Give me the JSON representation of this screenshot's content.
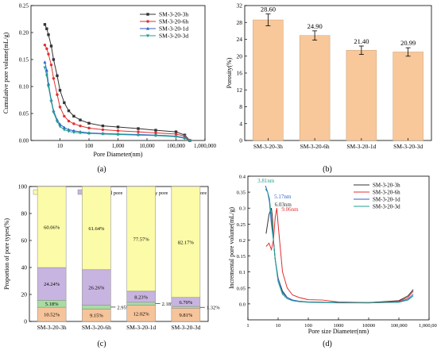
{
  "panels": {
    "a": {
      "caption": "(a)",
      "chart_data": {
        "type": "line",
        "title": "",
        "xlabel": "Pore Diameter(nm)",
        "ylabel": "Cumulative pore volume(mL/g)",
        "x_scale": "log",
        "xlim": [
          1,
          1000000
        ],
        "ylim": [
          0,
          0.25
        ],
        "x_ticks": [
          {
            "v": 10,
            "label": "10"
          },
          {
            "v": 100,
            "label": "100"
          },
          {
            "v": 1000,
            "label": "1,000"
          },
          {
            "v": 10000,
            "label": "10,000"
          },
          {
            "v": 100000,
            "label": "100,000"
          },
          {
            "v": 1000000,
            "label": "1,000,000"
          }
        ],
        "y_ticks": [
          {
            "v": 0,
            "label": "0.00"
          },
          {
            "v": 0.05,
            "label": "0.05"
          },
          {
            "v": 0.1,
            "label": "0.10"
          },
          {
            "v": 0.15,
            "label": "0.15"
          },
          {
            "v": 0.2,
            "label": "0.20"
          },
          {
            "v": 0.25,
            "label": "0.25"
          }
        ],
        "legend": "top-right",
        "series": [
          {
            "name": "SM-3-20-3h",
            "color": "#333333",
            "marker": "square",
            "x": [
              3,
              3.5,
              4,
              5,
              6,
              8,
              10,
              14,
              20,
              30,
              50,
              100,
              300,
              1000,
              5000,
              20000,
              100000,
              200000,
              300000
            ],
            "y": [
              0.215,
              0.207,
              0.196,
              0.175,
              0.15,
              0.12,
              0.093,
              0.07,
              0.055,
              0.045,
              0.038,
              0.032,
              0.027,
              0.025,
              0.022,
              0.019,
              0.016,
              0.01,
              0.0
            ]
          },
          {
            "name": "SM-3-20-6h",
            "color": "#e03030",
            "marker": "circle",
            "x": [
              3,
              3.5,
              4,
              5,
              6,
              8,
              10,
              14,
              20,
              30,
              50,
              100,
              300,
              1000,
              5000,
              20000,
              100000,
              200000,
              300000
            ],
            "y": [
              0.177,
              0.17,
              0.16,
              0.14,
              0.115,
              0.085,
              0.062,
              0.045,
              0.036,
              0.031,
              0.027,
              0.023,
              0.02,
              0.018,
              0.016,
              0.014,
              0.012,
              0.008,
              0.0
            ]
          },
          {
            "name": "SM-3-20-1d",
            "color": "#2f5fc8",
            "marker": "triangle-up",
            "x": [
              3,
              3.5,
              4,
              5,
              6,
              8,
              10,
              14,
              20,
              30,
              50,
              100,
              300,
              1000,
              5000,
              20000,
              100000,
              200000,
              300000
            ],
            "y": [
              0.145,
              0.13,
              0.105,
              0.075,
              0.055,
              0.038,
              0.03,
              0.024,
              0.02,
              0.018,
              0.016,
              0.014,
              0.013,
              0.012,
              0.011,
              0.01,
              0.008,
              0.005,
              0.0
            ]
          },
          {
            "name": "SM-3-20-3d",
            "color": "#20a090",
            "marker": "triangle-down",
            "x": [
              3,
              3.5,
              4,
              5,
              6,
              8,
              10,
              14,
              20,
              30,
              50,
              100,
              300,
              1000,
              5000,
              20000,
              100000,
              200000,
              300000
            ],
            "y": [
              0.135,
              0.12,
              0.1,
              0.072,
              0.052,
              0.035,
              0.026,
              0.02,
              0.017,
              0.015,
              0.014,
              0.013,
              0.012,
              0.011,
              0.01,
              0.009,
              0.007,
              0.004,
              0.0
            ]
          }
        ]
      }
    },
    "b": {
      "caption": "(b)",
      "chart_data": {
        "type": "bar",
        "title": "",
        "xlabel": "",
        "ylabel": "Porosity(%)",
        "ylim": [
          0,
          32
        ],
        "y_ticks": [
          {
            "v": 0,
            "label": "0"
          },
          {
            "v": 4,
            "label": "4"
          },
          {
            "v": 8,
            "label": "8"
          },
          {
            "v": 12,
            "label": "12"
          },
          {
            "v": 16,
            "label": "16"
          },
          {
            "v": 20,
            "label": "20"
          },
          {
            "v": 24,
            "label": "24"
          },
          {
            "v": 28,
            "label": "28"
          },
          {
            "v": 32,
            "label": "32"
          }
        ],
        "categories": [
          "SM-3-20-3h",
          "SM-3-20-6h",
          "SM-3-20-1d",
          "SM-3-20-3d"
        ],
        "values": [
          28.6,
          24.9,
          21.4,
          20.99
        ],
        "errors": [
          1.4,
          1.1,
          1.0,
          1.0
        ],
        "value_labels": [
          "28.60",
          "24.90",
          "21.40",
          "20.99"
        ],
        "color": "#f8c89a"
      }
    },
    "c": {
      "caption": "(c)",
      "chart_data": {
        "type": "bar",
        "stacked": true,
        "title": "",
        "xlabel": "",
        "ylabel": "Proportion of pore types(%)",
        "ylim": [
          0,
          100
        ],
        "y_ticks": [
          {
            "v": 0,
            "label": "0"
          },
          {
            "v": 20,
            "label": "20"
          },
          {
            "v": 40,
            "label": "40"
          },
          {
            "v": 60,
            "label": "60"
          },
          {
            "v": 80,
            "label": "80"
          },
          {
            "v": 100,
            "label": "100"
          }
        ],
        "categories": [
          "SM-3-20-3h",
          "SM-3-20-6h",
          "SM-3-20-1d",
          "SM-3-20-3d"
        ],
        "legend": "top",
        "series": [
          {
            "name": "Large pore",
            "color": "#f6c49a",
            "values": [
              10.52,
              9.15,
              12.02,
              9.81
            ],
            "labels": [
              "10.52%",
              "9.15%",
              "12.02%",
              "9.81%"
            ],
            "outside": [
              false,
              false,
              false,
              false
            ]
          },
          {
            "name": "Capillary pore",
            "color": "#a8dca0",
            "values": [
              5.18,
              2.95,
              2.18,
              1.32
            ],
            "labels": [
              "5.18%",
              "2.95%",
              "2.18%",
              "1.32%"
            ],
            "outside": [
              false,
              true,
              true,
              true
            ]
          },
          {
            "name": "Transitional pore",
            "color": "#c8b4e0",
            "values": [
              24.24,
              26.26,
              8.23,
              6.7
            ],
            "labels": [
              "24.24%",
              "26.26%",
              "8.23%",
              "6.70%"
            ],
            "outside": [
              false,
              false,
              false,
              false
            ]
          },
          {
            "name": "Gel pore",
            "color": "#fbfba8",
            "values": [
              60.06,
              61.64,
              77.57,
              82.17
            ],
            "labels": [
              "60.06%",
              "61.64%",
              "77.57%",
              "82.17%"
            ],
            "outside": [
              false,
              false,
              false,
              false
            ]
          }
        ]
      }
    },
    "d": {
      "caption": "(d)",
      "chart_data": {
        "type": "line",
        "title": "",
        "xlabel": "Pore size Diameter(nm)",
        "ylabel": "Incremental pore volume(mL/g)",
        "x_scale": "log",
        "xlim": [
          1,
          1000000
        ],
        "ylim": [
          -0.05,
          0.4
        ],
        "x_ticks": [
          {
            "v": 1,
            "label": "1"
          },
          {
            "v": 10,
            "label": "10"
          },
          {
            "v": 100,
            "label": "100"
          },
          {
            "v": 1000,
            "label": "1000"
          },
          {
            "v": 10000,
            "label": "10000"
          },
          {
            "v": 100000,
            "label": "100,000"
          },
          {
            "v": 1000000,
            "label": "1,000,000"
          }
        ],
        "y_ticks": [
          {
            "v": 0,
            "label": "0.0"
          },
          {
            "v": 0.05,
            "label": "0.05"
          },
          {
            "v": 0.1,
            "label": "0.1"
          },
          {
            "v": 0.15,
            "label": "0.15"
          },
          {
            "v": 0.2,
            "label": "0.2"
          },
          {
            "v": 0.25,
            "label": "0.25"
          },
          {
            "v": 0.3,
            "label": "0.3"
          },
          {
            "v": 0.35,
            "label": "0.35"
          },
          {
            "v": 0.4,
            "label": "0.4"
          }
        ],
        "legend": "top-right",
        "series": [
          {
            "name": "SM-3-20-3h",
            "color": "#333333",
            "x": [
              4,
              5,
              6,
              6.5,
              7,
              8,
              10,
              14,
              20,
              30,
              50,
              100,
              300,
              1000,
              10000,
              100000,
              200000,
              300000
            ],
            "y": [
              0.22,
              0.28,
              0.3,
              0.27,
              0.2,
              0.14,
              0.08,
              0.04,
              0.02,
              0.012,
              0.008,
              0.006,
              0.005,
              0.004,
              0.004,
              0.01,
              0.025,
              0.045
            ]
          },
          {
            "name": "SM-3-20-6h",
            "color": "#e03030",
            "x": [
              4,
              5,
              6,
              7,
              8,
              9.06,
              10,
              14,
              20,
              30,
              50,
              100,
              300,
              1000,
              10000,
              100000,
              200000,
              300000
            ],
            "y": [
              0.18,
              0.19,
              0.17,
              0.2,
              0.27,
              0.3,
              0.25,
              0.1,
              0.05,
              0.028,
              0.02,
              0.013,
              0.012,
              0.006,
              0.004,
              0.008,
              0.02,
              0.04
            ]
          },
          {
            "name": "SM-3-20-1d",
            "color": "#2f5fc8",
            "x": [
              3.81,
              4.5,
              5.17,
              6,
              7,
              8,
              10,
              14,
              20,
              30,
              50,
              100,
              300,
              1000,
              10000,
              100000,
              200000,
              300000
            ],
            "y": [
              0.37,
              0.35,
              0.32,
              0.25,
              0.2,
              0.14,
              0.08,
              0.035,
              0.02,
              0.012,
              0.008,
              0.006,
              0.005,
              0.004,
              0.003,
              0.006,
              0.015,
              0.03
            ]
          },
          {
            "name": "SM-3-20-3d",
            "color": "#20a090",
            "x": [
              3.81,
              4.5,
              5.17,
              6,
              7,
              8,
              10,
              14,
              20,
              30,
              50,
              100,
              300,
              1000,
              10000,
              100000,
              200000,
              300000
            ],
            "y": [
              0.36,
              0.35,
              0.33,
              0.27,
              0.2,
              0.14,
              0.07,
              0.03,
              0.016,
              0.01,
              0.007,
              0.005,
              0.004,
              0.003,
              0.003,
              0.005,
              0.012,
              0.025
            ]
          }
        ],
        "annotations": [
          {
            "text": "3.81nm",
            "x": 3.81,
            "y": 0.37,
            "color": "#20a090"
          },
          {
            "text": "5.17nm",
            "x": 5.17,
            "y": 0.32,
            "color": "#2f5fc8"
          },
          {
            "text": "6.03nm",
            "x": 6.03,
            "y": 0.3,
            "color": "#333333"
          },
          {
            "text": "9.06nm",
            "x": 9.06,
            "y": 0.3,
            "color": "#e03030"
          }
        ]
      }
    }
  }
}
